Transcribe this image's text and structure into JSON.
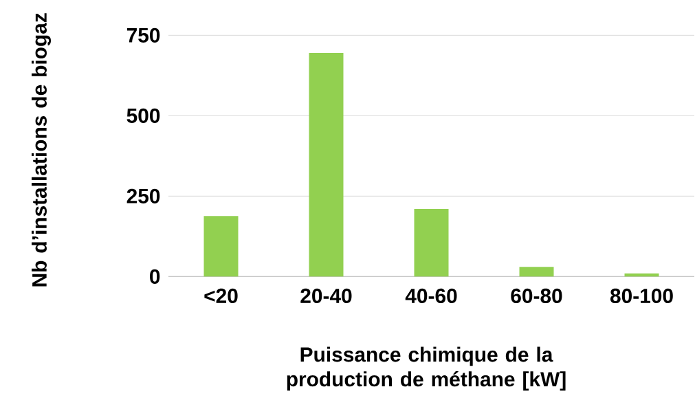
{
  "chart_data": {
    "type": "bar",
    "xlabel": "Puissance chimique de la production de méthane [kW]",
    "ylabel": "Nb d’installations de biogaz",
    "categories": [
      "<20",
      "20-40",
      "40-60",
      "60-80",
      "80-100"
    ],
    "values": [
      188,
      695,
      210,
      30,
      10
    ],
    "color": "#92d050",
    "ylim": [
      0,
      750
    ],
    "yticks": [
      0,
      250,
      500,
      750
    ],
    "grid": "y"
  }
}
